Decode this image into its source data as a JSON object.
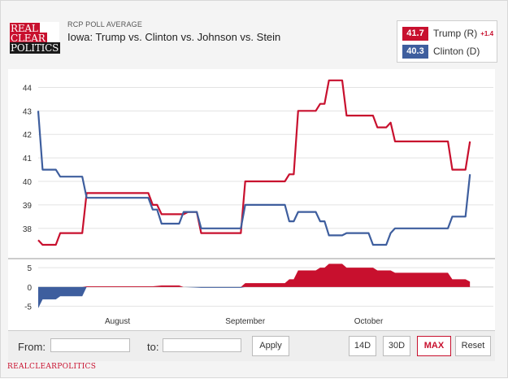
{
  "header": {
    "logo_line1": "REAL",
    "logo_line2": "CLEAR",
    "logo_line3": "POLITICS",
    "subtitle": "RCP POLL AVERAGE",
    "title": "Iowa: Trump vs. Clinton vs. Johnson vs. Stein"
  },
  "legend": {
    "trump": {
      "value": "41.7",
      "name": "Trump (R)",
      "spread": "+1.4",
      "color": "#c8102e"
    },
    "clinton": {
      "value": "40.3",
      "name": "Clinton (D)",
      "color": "#3e5e9e"
    }
  },
  "chart_data": [
    {
      "type": "line",
      "title": "Iowa: Trump vs. Clinton vs. Johnson vs. Stein",
      "xlabel": "",
      "ylabel": "",
      "ylim": [
        37.3,
        44.5
      ],
      "xlim": [
        0,
        100
      ],
      "yticks": [
        38,
        39,
        40,
        41,
        42,
        43,
        44
      ],
      "xticks": [
        {
          "t": 18,
          "label": "August"
        },
        {
          "t": 47,
          "label": "September"
        },
        {
          "t": 75,
          "label": "October"
        }
      ],
      "grid": true,
      "series": [
        {
          "name": "Trump (R)",
          "color": "#c8102e",
          "points": [
            [
              0,
              37.5
            ],
            [
              1,
              37.3
            ],
            [
              4,
              37.3
            ],
            [
              5,
              37.8
            ],
            [
              10,
              37.8
            ],
            [
              11,
              39.5
            ],
            [
              25,
              39.5
            ],
            [
              26,
              39.0
            ],
            [
              27,
              39.0
            ],
            [
              28,
              38.6
            ],
            [
              33,
              38.6
            ],
            [
              34,
              38.7
            ],
            [
              36,
              38.7
            ],
            [
              37,
              37.8
            ],
            [
              46,
              37.8
            ],
            [
              47,
              40.0
            ],
            [
              56,
              40.0
            ],
            [
              57,
              40.3
            ],
            [
              58,
              40.3
            ],
            [
              59,
              43.0
            ],
            [
              63,
              43.0
            ],
            [
              64,
              43.3
            ],
            [
              65,
              43.3
            ],
            [
              66,
              44.3
            ],
            [
              69,
              44.3
            ],
            [
              70,
              42.8
            ],
            [
              76,
              42.8
            ],
            [
              77,
              42.3
            ],
            [
              79,
              42.3
            ],
            [
              80,
              42.5
            ],
            [
              81,
              41.7
            ],
            [
              93,
              41.7
            ],
            [
              94,
              40.5
            ],
            [
              97,
              40.5
            ],
            [
              98,
              41.7
            ]
          ]
        },
        {
          "name": "Clinton (D)",
          "color": "#3e5e9e",
          "points": [
            [
              0,
              43.0
            ],
            [
              1,
              40.5
            ],
            [
              4,
              40.5
            ],
            [
              5,
              40.2
            ],
            [
              10,
              40.2
            ],
            [
              11,
              39.3
            ],
            [
              25,
              39.3
            ],
            [
              26,
              38.8
            ],
            [
              27,
              38.8
            ],
            [
              28,
              38.2
            ],
            [
              32,
              38.2
            ],
            [
              33,
              38.7
            ],
            [
              36,
              38.7
            ],
            [
              37,
              38.0
            ],
            [
              46,
              38.0
            ],
            [
              47,
              39.0
            ],
            [
              56,
              39.0
            ],
            [
              57,
              38.3
            ],
            [
              58,
              38.3
            ],
            [
              59,
              38.7
            ],
            [
              63,
              38.7
            ],
            [
              64,
              38.3
            ],
            [
              65,
              38.3
            ],
            [
              66,
              37.7
            ],
            [
              69,
              37.7
            ],
            [
              70,
              37.8
            ],
            [
              75,
              37.8
            ],
            [
              76,
              37.3
            ],
            [
              79,
              37.3
            ],
            [
              80,
              37.8
            ],
            [
              81,
              38.0
            ],
            [
              93,
              38.0
            ],
            [
              94,
              38.5
            ],
            [
              97,
              38.5
            ],
            [
              98,
              40.3
            ]
          ]
        }
      ]
    },
    {
      "type": "area",
      "title": "Spread",
      "ylim": [
        -5.5,
        6.3
      ],
      "yticks": [
        -5,
        0,
        5
      ],
      "positive_color": "#c8102e",
      "negative_color": "#3e5e9e",
      "points": [
        [
          0,
          -5.5
        ],
        [
          1,
          -3.2
        ],
        [
          4,
          -3.2
        ],
        [
          5,
          -2.4
        ],
        [
          10,
          -2.4
        ],
        [
          11,
          0.2
        ],
        [
          25,
          0.2
        ],
        [
          26,
          0.2
        ],
        [
          28,
          0.4
        ],
        [
          32,
          0.4
        ],
        [
          33,
          0.0
        ],
        [
          37,
          -0.2
        ],
        [
          46,
          -0.2
        ],
        [
          47,
          1.0
        ],
        [
          56,
          1.0
        ],
        [
          57,
          2.0
        ],
        [
          58,
          2.0
        ],
        [
          59,
          4.3
        ],
        [
          63,
          4.3
        ],
        [
          64,
          5.0
        ],
        [
          65,
          5.0
        ],
        [
          66,
          6.0
        ],
        [
          69,
          6.0
        ],
        [
          70,
          5.0
        ],
        [
          76,
          5.0
        ],
        [
          77,
          4.3
        ],
        [
          80,
          4.3
        ],
        [
          81,
          3.7
        ],
        [
          93,
          3.7
        ],
        [
          94,
          2.0
        ],
        [
          97,
          2.0
        ],
        [
          98,
          1.4
        ]
      ]
    }
  ],
  "axis_labels": {
    "main_y": [
      "44",
      "43",
      "42",
      "41",
      "40",
      "39",
      "38"
    ],
    "spread_y": [
      "5",
      "0",
      "-5"
    ],
    "months": [
      "August",
      "September",
      "October"
    ]
  },
  "toolbar": {
    "from_label": "From:",
    "to_label": "to:",
    "from_value": "",
    "to_value": "",
    "apply_label": "Apply",
    "btn_14d": "14D",
    "btn_30d": "30D",
    "btn_max": "MAX",
    "btn_reset": "Reset"
  },
  "footer": {
    "text": "REALCLEARPOLITICS"
  }
}
